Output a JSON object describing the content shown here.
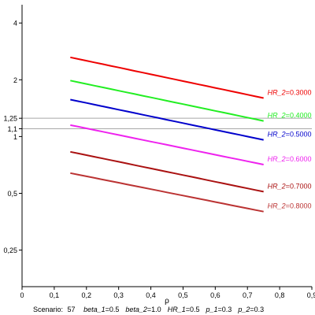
{
  "chart_data": {
    "type": "line",
    "xlabel": "ρ",
    "xlim": [
      0,
      0.9
    ],
    "ylim": [
      0.16,
      5
    ],
    "y_scale": "log",
    "x_ticks": [
      0,
      0.1,
      0.2,
      0.3,
      0.4,
      0.5,
      0.6,
      0.7,
      0.8,
      0.9
    ],
    "x_tick_labels": [
      "0",
      "0,1",
      "0,2",
      "0,3",
      "0,4",
      "0,5",
      "0,6",
      "0,7",
      "0,8",
      "0,9"
    ],
    "y_ticks": [
      0.25,
      0.5,
      1,
      1.1,
      1.25,
      2,
      4
    ],
    "y_tick_labels": [
      "0,25",
      "0,5",
      "1",
      "1,1",
      "1,25",
      "2",
      "4"
    ],
    "reference_lines": [
      1.1,
      1.25
    ],
    "grid": false,
    "series": [
      {
        "name": "HR_2",
        "value": "0.3000",
        "color": "#ee0000",
        "x": [
          0.15,
          0.75
        ],
        "y": [
          2.63,
          1.6
        ]
      },
      {
        "name": "HR_2",
        "value": "0.4000",
        "color": "#22ee22",
        "x": [
          0.15,
          0.75
        ],
        "y": [
          1.98,
          1.21
        ]
      },
      {
        "name": "HR_2",
        "value": "0.5000",
        "color": "#0000cc",
        "x": [
          0.15,
          0.75
        ],
        "y": [
          1.57,
          0.96
        ]
      },
      {
        "name": "HR_2",
        "value": "0.6000",
        "color": "#ee22ee",
        "x": [
          0.15,
          0.75
        ],
        "y": [
          1.15,
          0.71
        ]
      },
      {
        "name": "HR_2",
        "value": "0.7000",
        "color": "#aa1111",
        "x": [
          0.15,
          0.75
        ],
        "y": [
          0.83,
          0.51
        ]
      },
      {
        "name": "HR_2",
        "value": "0.8000",
        "color": "#bb3333",
        "x": [
          0.15,
          0.75
        ],
        "y": [
          0.64,
          0.4
        ]
      }
    ],
    "series_label_prefix": "HR_2",
    "footer": {
      "scenario_label": "Scenario:",
      "scenario_value": "57",
      "params": [
        {
          "name": "beta_1",
          "value": "0.5"
        },
        {
          "name": "beta_2",
          "value": "1.0"
        },
        {
          "name": "HR_1",
          "value": "0.5"
        },
        {
          "name": "p_1",
          "value": "0.3"
        },
        {
          "name": "p_2",
          "value": "0.3"
        }
      ]
    }
  }
}
